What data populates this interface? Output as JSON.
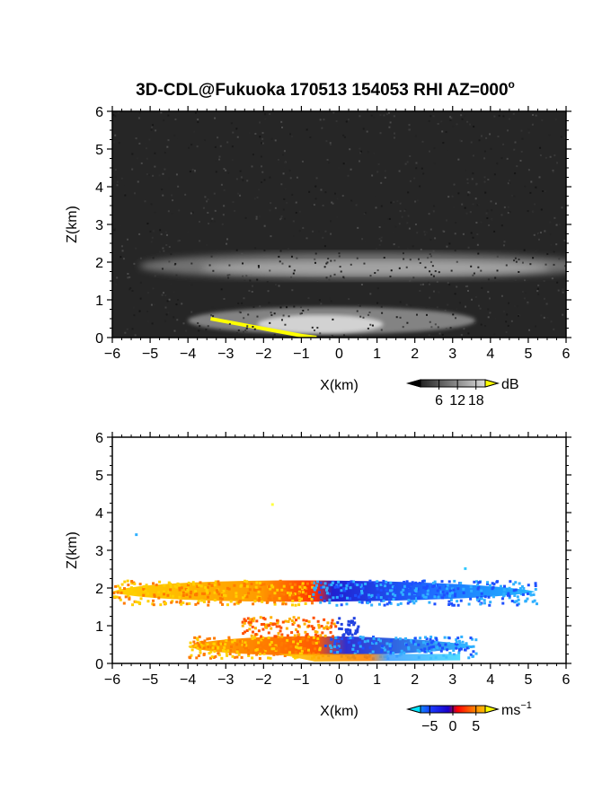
{
  "chart_data": [
    {
      "type": "heatmap",
      "title": "3D-CDL@Fukuoka 170513 154053 RHI AZ=000",
      "title_sup": "o",
      "xlabel": "X(km)",
      "ylabel": "Z(km)",
      "xlim": [
        -6,
        6
      ],
      "ylim": [
        0,
        6
      ],
      "xticks": [
        "−6",
        "−5",
        "−4",
        "−3",
        "−2",
        "−1",
        "0",
        "1",
        "2",
        "3",
        "4",
        "5",
        "6"
      ],
      "yticks": [
        "0",
        "1",
        "2",
        "3",
        "4",
        "5",
        "6"
      ],
      "colorbar": {
        "unit": "dB",
        "ticks": [
          "6",
          "12",
          "18"
        ],
        "tick_values": [
          6,
          12,
          18
        ],
        "range": [
          0,
          21
        ],
        "colormap": "grayscale"
      },
      "features": [
        {
          "kind": "layer",
          "x": [
            -6,
            6
          ],
          "z": 1.9,
          "thickness_km": 0.4,
          "intensity_dB": 12
        },
        {
          "kind": "layer",
          "x": [
            -4,
            3.6
          ],
          "z": 0.45,
          "thickness_km": 0.45,
          "intensity_dB": 16
        },
        {
          "kind": "saturated",
          "color": "#ffff00",
          "boundary": [
            [
              -3.4,
              0.5
            ],
            [
              -2.6,
              0.35
            ],
            [
              -1.8,
              0.2
            ],
            [
              -1.0,
              0.05
            ],
            [
              -0.6,
              0.0
            ]
          ]
        }
      ]
    },
    {
      "type": "heatmap",
      "xlabel": "X(km)",
      "ylabel": "Z(km)",
      "xlim": [
        -6,
        6
      ],
      "ylim": [
        0,
        6
      ],
      "xticks": [
        "−6",
        "−5",
        "−4",
        "−3",
        "−2",
        "−1",
        "0",
        "1",
        "2",
        "3",
        "4",
        "5",
        "6"
      ],
      "yticks": [
        "0",
        "1",
        "2",
        "3",
        "4",
        "5",
        "6"
      ],
      "colorbar": {
        "unit": "ms",
        "unit_sup": "−1",
        "ticks": [
          "−5",
          "0",
          "5"
        ],
        "tick_values": [
          -5,
          0,
          5
        ],
        "range": [
          -7,
          7
        ],
        "colormap": "cyan-blue-red-orange-yellow"
      },
      "features": [
        {
          "kind": "layer",
          "x": [
            -6,
            5.2
          ],
          "z": 1.9,
          "thickness_km": 0.5,
          "velocity_west_ms": 5,
          "velocity_east_ms": -5
        },
        {
          "kind": "layer",
          "x": [
            -4,
            3.6
          ],
          "z": 0.45,
          "thickness_km": 0.45,
          "velocity_west_ms": 4,
          "velocity_east_ms": -4
        },
        {
          "kind": "patch",
          "x": [
            -2.6,
            0.5
          ],
          "z": 1.0,
          "velocity_west_ms": 3,
          "velocity_east_ms": -3
        }
      ]
    }
  ]
}
